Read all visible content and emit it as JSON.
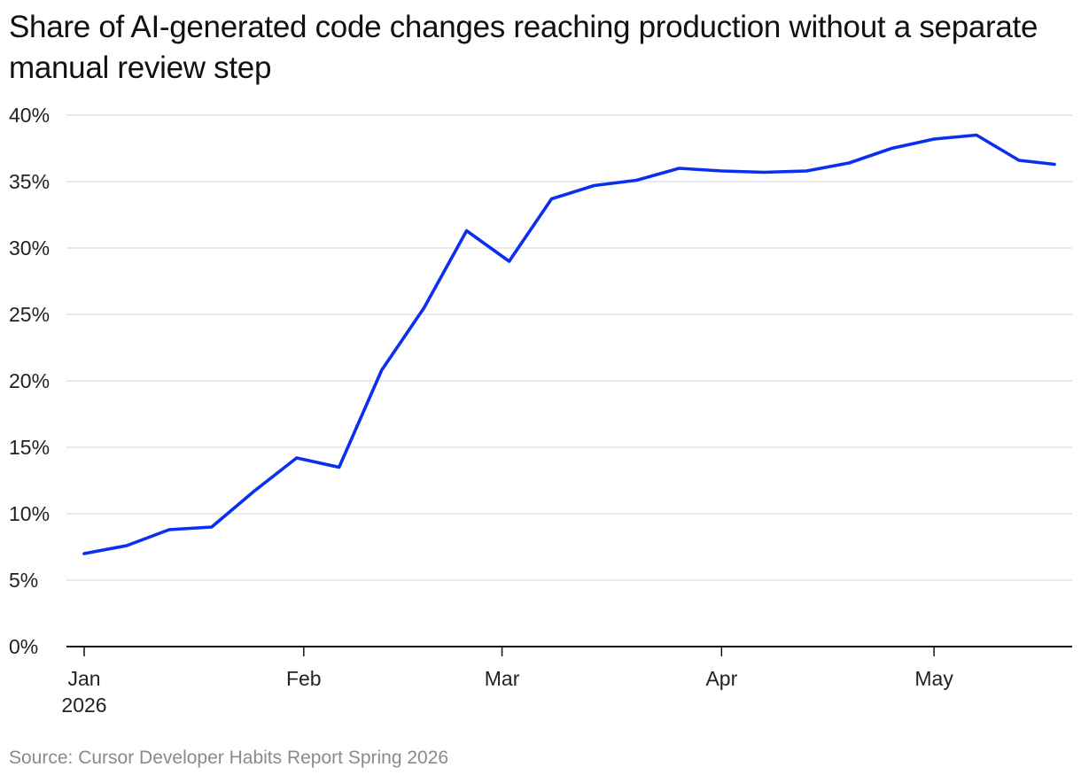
{
  "chart_data": {
    "type": "line",
    "title": "Share of AI-generated code changes reaching production without a separate manual review step",
    "source": "Source: Cursor Developer Habits Report Spring 2026",
    "xlabel": "",
    "ylabel": "",
    "ylim": [
      0,
      40
    ],
    "xlim": [
      "2026-01-01",
      "2026-05-18"
    ],
    "y_ticks": [
      {
        "value": 0,
        "label": "0%"
      },
      {
        "value": 5,
        "label": "5%"
      },
      {
        "value": 10,
        "label": "10%"
      },
      {
        "value": 15,
        "label": "15%"
      },
      {
        "value": 20,
        "label": "20%"
      },
      {
        "value": 25,
        "label": "25%"
      },
      {
        "value": 30,
        "label": "30%"
      },
      {
        "value": 35,
        "label": "35%"
      },
      {
        "value": 40,
        "label": "40%"
      }
    ],
    "x_ticks": [
      {
        "date": "2026-01-01",
        "label": "Jan",
        "sublabel": "2026"
      },
      {
        "date": "2026-02-01",
        "label": "Feb",
        "sublabel": ""
      },
      {
        "date": "2026-03-01",
        "label": "Mar",
        "sublabel": ""
      },
      {
        "date": "2026-04-01",
        "label": "Apr",
        "sublabel": ""
      },
      {
        "date": "2026-05-01",
        "label": "May",
        "sublabel": ""
      }
    ],
    "grid": true,
    "series": [
      {
        "color": "#0a2ff0",
        "points": [
          {
            "x": "2026-01-01",
            "y": 7.0
          },
          {
            "x": "2026-01-07",
            "y": 7.6
          },
          {
            "x": "2026-01-13",
            "y": 8.8
          },
          {
            "x": "2026-01-19",
            "y": 9.0
          },
          {
            "x": "2026-01-25",
            "y": 11.7
          },
          {
            "x": "2026-01-31",
            "y": 14.2
          },
          {
            "x": "2026-02-06",
            "y": 13.5
          },
          {
            "x": "2026-02-12",
            "y": 20.8
          },
          {
            "x": "2026-02-18",
            "y": 25.5
          },
          {
            "x": "2026-02-24",
            "y": 31.3
          },
          {
            "x": "2026-03-02",
            "y": 29.0
          },
          {
            "x": "2026-03-08",
            "y": 33.7
          },
          {
            "x": "2026-03-14",
            "y": 34.7
          },
          {
            "x": "2026-03-20",
            "y": 35.1
          },
          {
            "x": "2026-03-26",
            "y": 36.0
          },
          {
            "x": "2026-04-01",
            "y": 35.8
          },
          {
            "x": "2026-04-07",
            "y": 35.7
          },
          {
            "x": "2026-04-13",
            "y": 35.8
          },
          {
            "x": "2026-04-19",
            "y": 36.4
          },
          {
            "x": "2026-04-25",
            "y": 37.5
          },
          {
            "x": "2026-05-01",
            "y": 38.2
          },
          {
            "x": "2026-05-07",
            "y": 38.5
          },
          {
            "x": "2026-05-13",
            "y": 36.6
          },
          {
            "x": "2026-05-18",
            "y": 36.3
          }
        ]
      }
    ]
  }
}
